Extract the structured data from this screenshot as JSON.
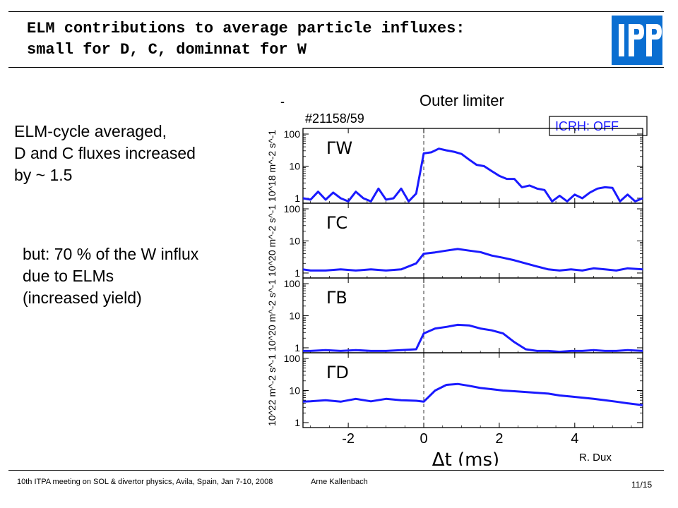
{
  "slide": {
    "title_line1": "ELM contributions to average particle influxes:",
    "title_line2": "small for D, C, dominnat for W",
    "text_block_1": [
      "ELM-cycle averaged,",
      "D and C fluxes increased",
      "by ~ 1.5"
    ],
    "text_block_2": [
      "but: 70 % of the W influx",
      "due to ELMs",
      "(increased yield)"
    ],
    "credit": "R. Dux",
    "footer_left": "10th ITPA meeting on SOL & divertor physics,  Avila,  Spain,  Jan 7-10,  2008",
    "footer_author": "Arne Kallenbach",
    "page": "11/15",
    "logo_text": "IPP",
    "logo_color": "#0a6ed1"
  },
  "chart_data": {
    "type": "line",
    "title": "Outer limiter",
    "title_prefix": "-",
    "shot_label": "#21158/59",
    "annotation": "ICRH: OFF",
    "xlabel": "Δt (ms)",
    "xlim": [
      -3.2,
      5.8
    ],
    "xticks": [
      -2,
      0,
      2,
      4
    ],
    "line_color": "#1a1aff",
    "yscale": "log",
    "ylim": [
      0.7,
      150
    ],
    "yticks": [
      1,
      10,
      100
    ],
    "panels": [
      {
        "name": "ΓW",
        "ylabel": "10^18 m^-2 s^-1",
        "series": {
          "x": [
            -3.2,
            -3.0,
            -2.8,
            -2.6,
            -2.4,
            -2.2,
            -2.0,
            -1.8,
            -1.6,
            -1.4,
            -1.2,
            -1.0,
            -0.8,
            -0.6,
            -0.4,
            -0.2,
            0.0,
            0.2,
            0.4,
            0.6,
            0.8,
            1.0,
            1.2,
            1.4,
            1.6,
            1.8,
            2.0,
            2.2,
            2.4,
            2.6,
            2.8,
            3.0,
            3.2,
            3.4,
            3.6,
            3.8,
            4.0,
            4.2,
            4.4,
            4.6,
            4.8,
            5.0,
            5.2,
            5.4,
            5.6,
            5.8
          ],
          "y": [
            1.0,
            0.9,
            1.6,
            0.9,
            1.5,
            1.0,
            0.8,
            1.6,
            1.0,
            0.8,
            2.0,
            0.9,
            1.0,
            2.0,
            0.8,
            1.4,
            25,
            27,
            35,
            31,
            28,
            24,
            16,
            11,
            10,
            7,
            5,
            4,
            4,
            2.2,
            2.5,
            2.0,
            1.8,
            0.8,
            1.2,
            0.8,
            1.3,
            1.0,
            1.5,
            2.0,
            2.2,
            2.1,
            0.8,
            1.3,
            0.8,
            1.0
          ]
        }
      },
      {
        "name": "ΓC",
        "ylabel": "10^20 m^-2 s^-1",
        "series": {
          "x": [
            -3.2,
            -3.0,
            -2.6,
            -2.2,
            -1.8,
            -1.4,
            -1.0,
            -0.6,
            -0.2,
            0.0,
            0.3,
            0.6,
            0.9,
            1.2,
            1.5,
            1.8,
            2.1,
            2.4,
            2.7,
            3.0,
            3.3,
            3.6,
            3.9,
            4.2,
            4.5,
            4.8,
            5.1,
            5.4,
            5.8
          ],
          "y": [
            1.3,
            1.2,
            1.2,
            1.3,
            1.2,
            1.3,
            1.2,
            1.3,
            2.0,
            4.0,
            4.4,
            5.0,
            5.6,
            5.0,
            4.5,
            3.5,
            3.0,
            2.5,
            2.0,
            1.6,
            1.3,
            1.2,
            1.3,
            1.2,
            1.4,
            1.3,
            1.2,
            1.4,
            1.3
          ]
        }
      },
      {
        "name": "ΓB",
        "ylabel": "10^20 m^-2 s^-1",
        "series": {
          "x": [
            -3.2,
            -3.0,
            -2.6,
            -2.2,
            -1.8,
            -1.4,
            -1.0,
            -0.6,
            -0.2,
            0.0,
            0.3,
            0.6,
            0.9,
            1.2,
            1.5,
            1.8,
            2.1,
            2.4,
            2.7,
            3.0,
            3.3,
            3.6,
            3.9,
            4.2,
            4.5,
            4.8,
            5.1,
            5.4,
            5.8
          ],
          "y": [
            0.8,
            0.8,
            0.85,
            0.8,
            0.85,
            0.8,
            0.8,
            0.85,
            0.9,
            2.8,
            4.0,
            4.5,
            5.2,
            5.0,
            4.0,
            3.5,
            2.8,
            1.5,
            0.9,
            0.8,
            0.8,
            0.75,
            0.8,
            0.8,
            0.85,
            0.8,
            0.8,
            0.85,
            0.8
          ]
        }
      },
      {
        "name": "ΓD",
        "ylabel": "10^22 m^-2 s^-1",
        "series": {
          "x": [
            -3.2,
            -3.0,
            -2.6,
            -2.2,
            -1.8,
            -1.4,
            -1.0,
            -0.6,
            -0.2,
            0.0,
            0.3,
            0.6,
            0.9,
            1.2,
            1.5,
            1.8,
            2.1,
            2.4,
            2.7,
            3.0,
            3.3,
            3.6,
            3.9,
            4.2,
            4.5,
            4.8,
            5.1,
            5.4,
            5.8
          ],
          "y": [
            4.5,
            4.6,
            5.0,
            4.5,
            5.5,
            4.6,
            5.5,
            5.0,
            4.8,
            4.5,
            10,
            15,
            16,
            14,
            12,
            11,
            10,
            9.5,
            9,
            8.5,
            8,
            7,
            6.5,
            6,
            5.5,
            5,
            4.5,
            4,
            3.5
          ]
        }
      }
    ]
  }
}
